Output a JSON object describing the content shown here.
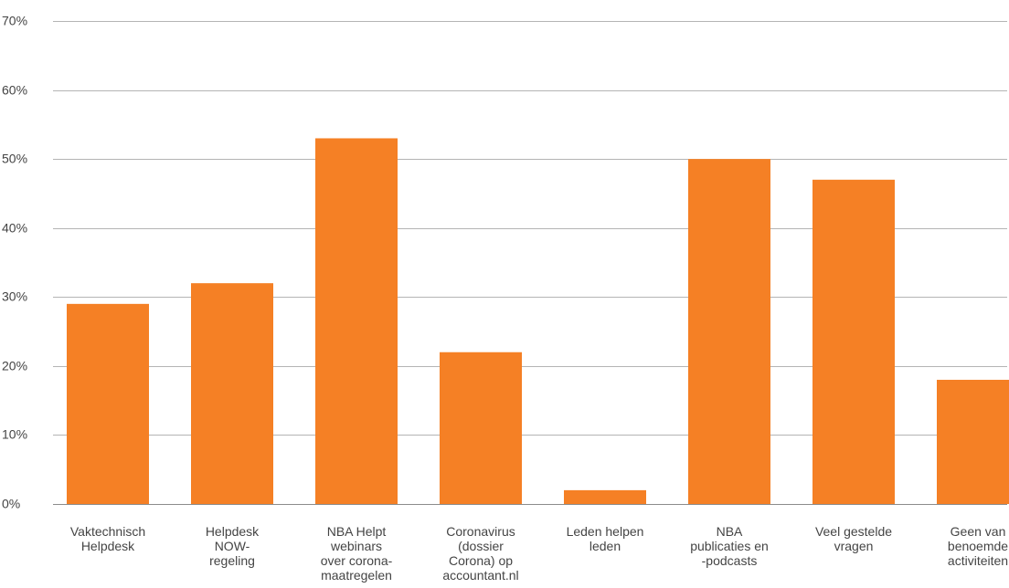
{
  "chart_data": {
    "type": "bar",
    "categories": [
      [
        "Vaktechnisch",
        "Helpdesk"
      ],
      [
        "Helpdesk",
        "NOW-",
        "regeling"
      ],
      [
        "NBA Helpt",
        "webinars",
        "over corona-",
        "maatregelen"
      ],
      [
        "Coronavirus",
        "(dossier",
        "Corona) op",
        "accountant.nl"
      ],
      [
        "Leden helpen",
        "leden"
      ],
      [
        "NBA",
        "publicaties en",
        "-podcasts"
      ],
      [
        "Veel gestelde",
        "vragen"
      ],
      [
        "Geen van",
        "benoemde",
        "activiteiten"
      ]
    ],
    "values": [
      29,
      32,
      53,
      22,
      2,
      50,
      47,
      18
    ],
    "ylim": [
      0,
      70
    ],
    "yticks": [
      0,
      10,
      20,
      30,
      40,
      50,
      60,
      70
    ],
    "ytick_labels": [
      "0%",
      "10%",
      "20%",
      "30%",
      "40%",
      "50%",
      "60%",
      "70%"
    ],
    "title": "",
    "xlabel": "",
    "ylabel": "",
    "grid": true,
    "bar_color": "#f58025",
    "grid_color": "#b4b4b4"
  }
}
